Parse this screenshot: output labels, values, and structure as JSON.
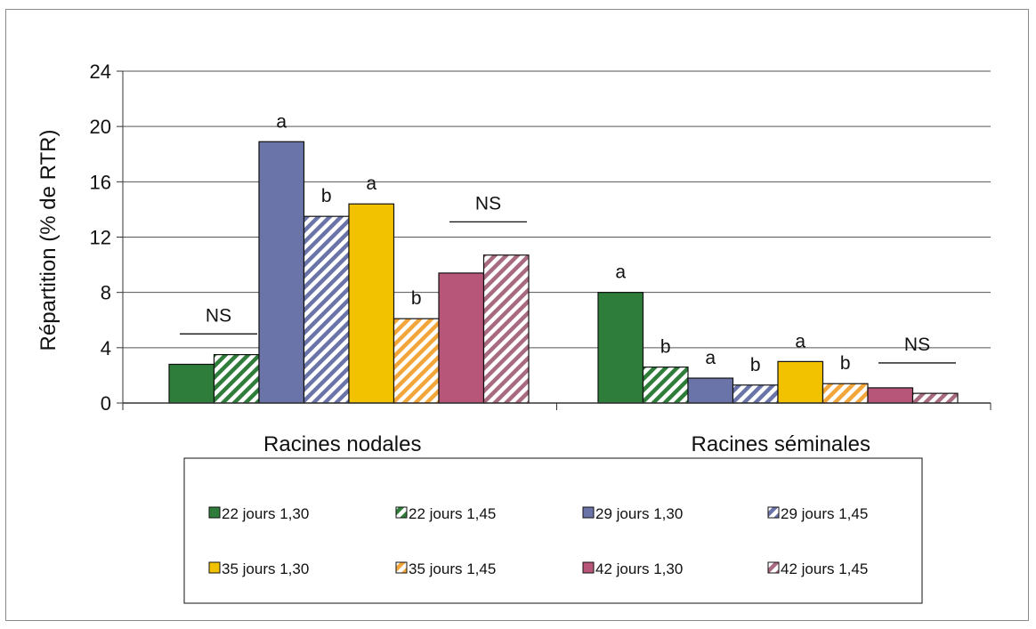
{
  "chart_data": {
    "type": "bar",
    "title": "",
    "xlabel": "",
    "ylabel": "Répartition (% de RTR)",
    "ylim": [
      0,
      24
    ],
    "yticks": [
      "0",
      "4",
      "8",
      "12",
      "16",
      "20",
      "24"
    ],
    "grid": true,
    "legend_position": "bottom",
    "categories": [
      "Racines nodales",
      "Racines séminales"
    ],
    "series": [
      {
        "name": "22 jours 1,30",
        "values": [
          2.8,
          8.0
        ],
        "color": "#2f7d3a",
        "pattern": "solid"
      },
      {
        "name": "22 jours 1,45",
        "values": [
          3.5,
          2.6
        ],
        "color": "#2f7d3a",
        "pattern": "hatched"
      },
      {
        "name": "29 jours 1,30",
        "values": [
          18.9,
          1.8
        ],
        "color": "#6a74a8",
        "pattern": "solid"
      },
      {
        "name": "29 jours 1,45",
        "values": [
          13.5,
          1.3
        ],
        "color": "#6a74a8",
        "pattern": "hatched"
      },
      {
        "name": "35 jours 1,30",
        "values": [
          14.4,
          3.0
        ],
        "color": "#f2c200",
        "pattern": "solid"
      },
      {
        "name": "35 jours 1,45",
        "values": [
          6.1,
          1.4
        ],
        "color": "#f2a53a",
        "pattern": "hatched"
      },
      {
        "name": "42 jours 1,30",
        "values": [
          9.4,
          1.1
        ],
        "color": "#b8567a",
        "pattern": "solid"
      },
      {
        "name": "42 jours 1,45",
        "values": [
          10.7,
          0.7
        ],
        "color": "#a86a80",
        "pattern": "hatched"
      }
    ],
    "annotations": [
      {
        "text": "NS",
        "category": 0,
        "series_span": [
          0,
          1
        ],
        "value": 5.0,
        "bracket": true
      },
      {
        "text": "a",
        "category": 0,
        "series": 2,
        "value": 18.9
      },
      {
        "text": "b",
        "category": 0,
        "series": 3,
        "value": 13.5
      },
      {
        "text": "a",
        "category": 0,
        "series": 4,
        "value": 14.4
      },
      {
        "text": "b",
        "category": 0,
        "series": 5,
        "value": 6.1
      },
      {
        "text": "NS",
        "category": 0,
        "series_span": [
          6,
          7
        ],
        "value": 13.1,
        "bracket": true
      },
      {
        "text": "a",
        "category": 1,
        "series": 0,
        "value": 8.0
      },
      {
        "text": "b",
        "category": 1,
        "series": 1,
        "value": 2.6
      },
      {
        "text": "a",
        "category": 1,
        "series": 2,
        "value": 1.8
      },
      {
        "text": "b",
        "category": 1,
        "series": 3,
        "value": 1.3
      },
      {
        "text": "a",
        "category": 1,
        "series": 4,
        "value": 3.0
      },
      {
        "text": "b",
        "category": 1,
        "series": 5,
        "value": 1.4
      },
      {
        "text": "NS",
        "category": 1,
        "series_span": [
          6,
          7
        ],
        "value": 2.9,
        "bracket": true
      }
    ]
  }
}
